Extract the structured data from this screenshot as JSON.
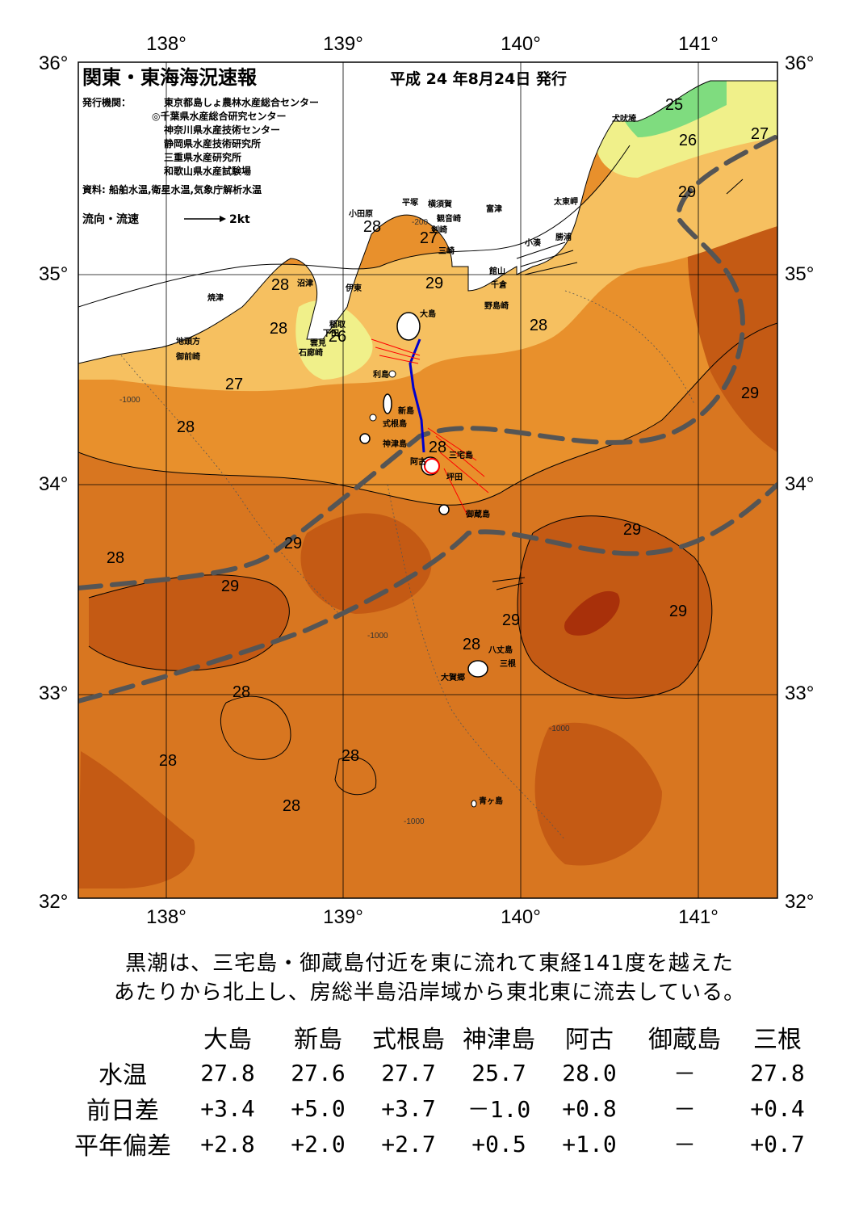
{
  "map": {
    "title": "関東・東海海況速報",
    "date": "平成 24 年8月24日 発行",
    "issuer_label": "発行機関：",
    "issuers": [
      "東京都島しょ農林水産総合センター",
      "◎千葉県水産総合研究センター",
      "神奈川県水産技術センター",
      "静岡県水産技術研究所",
      "三重県水産研究所",
      "和歌山県水産試験場"
    ],
    "source": "資料: 船舶水温,衛星水温,気象庁解析水温",
    "current_legend": "流向・流速",
    "current_scale": "2kt",
    "lon_ticks": [
      "138°",
      "139°",
      "140°",
      "141°"
    ],
    "lat_ticks": [
      "36°",
      "35°",
      "34°",
      "33°",
      "32°"
    ],
    "isotherm_labels": [
      {
        "text": "25"
      },
      {
        "text": "26"
      },
      {
        "text": "27"
      },
      {
        "text": "29"
      },
      {
        "text": "28"
      },
      {
        "text": "27"
      },
      {
        "text": "29"
      },
      {
        "text": "28"
      },
      {
        "text": "28"
      },
      {
        "text": "28"
      },
      {
        "text": "26"
      },
      {
        "text": "27"
      },
      {
        "text": "29"
      },
      {
        "text": "28"
      },
      {
        "text": "28"
      },
      {
        "text": "29"
      },
      {
        "text": "29"
      },
      {
        "text": "28"
      },
      {
        "text": "29"
      },
      {
        "text": "29"
      },
      {
        "text": "29"
      },
      {
        "text": "28"
      },
      {
        "text": "28"
      },
      {
        "text": "28"
      },
      {
        "text": "28"
      },
      {
        "text": "28"
      }
    ],
    "depth_labels": [
      "-200",
      "-1000"
    ],
    "place_names": [
      "犬吠埼",
      "太東岬",
      "勝浦",
      "小湊",
      "富津",
      "横須賀",
      "観音崎",
      "平塚",
      "剣崎",
      "三崎",
      "小田原",
      "館山",
      "千倉",
      "野島崎",
      "大島",
      "沼津",
      "伊東",
      "焼津",
      "稲取",
      "下田",
      "雲見",
      "石廊崎",
      "地頭方",
      "御前崎",
      "利島",
      "新島",
      "式根島",
      "神津島",
      "阿古",
      "三宅島",
      "坪田",
      "御蔵島",
      "八丈島",
      "三根",
      "大賀郷",
      "青ヶ島"
    ],
    "colors": {
      "sst_25": "#7fdc7f",
      "sst_26": "#f0f08a",
      "sst_27": "#f6c060",
      "sst_28": "#e8902c",
      "sst_28b": "#d87620",
      "sst_29": "#c45a14",
      "sst_30": "#a8300a",
      "land": "#ffffff",
      "kuroshio_axis": "#555555",
      "ship_track": "#0000cc",
      "current_red": "#ff0000"
    }
  },
  "summary": {
    "line1": "黒潮は、三宅島・御蔵島付近を東に流れて東経141度を越えた",
    "line2": "あたりから北上し、房総半島沿岸域から東北東に流去している。"
  },
  "table": {
    "columns": [
      "大島",
      "新島",
      "式根島",
      "神津島",
      "阿古",
      "御蔵島",
      "三根"
    ],
    "rows": [
      {
        "label": "水温",
        "values": [
          "27.8",
          "27.6",
          "27.7",
          "25.7",
          "28.0",
          "－",
          "27.8"
        ]
      },
      {
        "label": "前日差",
        "values": [
          "+3.4",
          "+5.0",
          "+3.7",
          "－1.0",
          "+0.8",
          "－",
          "+0.4"
        ]
      },
      {
        "label": "平年偏差",
        "values": [
          "+2.8",
          "+2.0",
          "+2.7",
          "+0.5",
          "+1.0",
          "－",
          "+0.7"
        ]
      }
    ]
  }
}
